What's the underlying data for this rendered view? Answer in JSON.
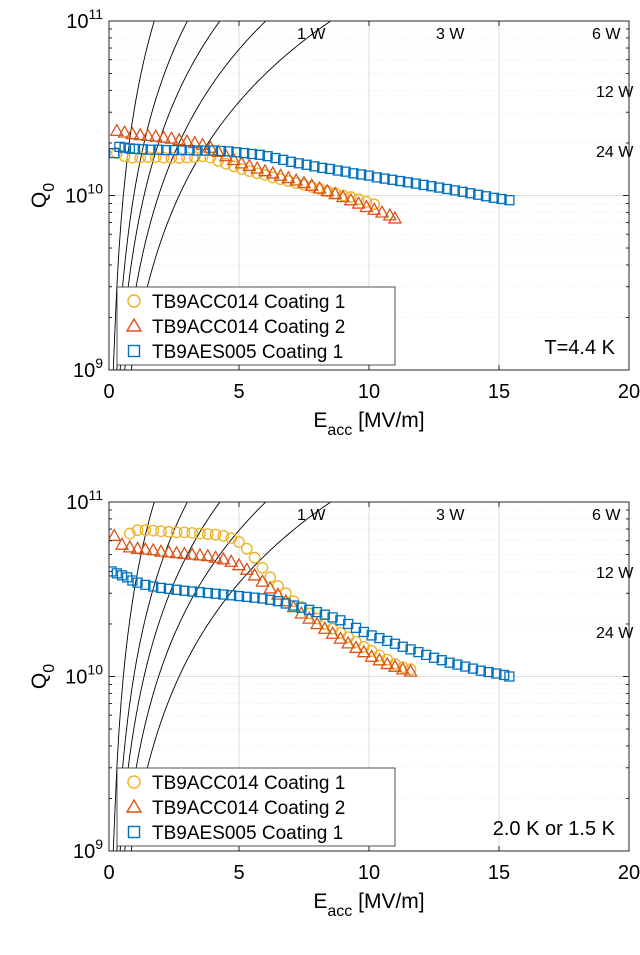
{
  "chart_data": [
    {
      "type": "scatter",
      "xlabel": "E",
      "xlabel_sub": "acc",
      "xlabel_unit": " [MV/m]",
      "ylabel": "Q",
      "ylabel_sub": "0",
      "xlim": [
        0,
        20
      ],
      "ylim": [
        1000000000.0,
        100000000000.0
      ],
      "yscale": "log",
      "x_ticks": [
        0,
        5,
        10,
        15,
        20
      ],
      "x_tick_labels": [
        "0",
        "5",
        "10",
        "15",
        "20"
      ],
      "y_ticks": [
        1000000000.0,
        10000000000.0,
        100000000000.0
      ],
      "y_tick_labels": [
        {
          "base": "10",
          "exp": "9"
        },
        {
          "base": "10",
          "exp": "10"
        },
        {
          "base": "10",
          "exp": "11"
        }
      ],
      "grid": true,
      "legend_position": "bottom-left",
      "annotation": "T=4.4 K",
      "power_lines": [
        {
          "label": "1 W",
          "power": 1
        },
        {
          "label": "3 W",
          "power": 3
        },
        {
          "label": "6 W",
          "power": 6
        },
        {
          "label": "12 W",
          "power": 12
        },
        {
          "label": "24 W",
          "power": 24
        }
      ],
      "series": [
        {
          "name": "TB9ACC014 Coating 1",
          "marker": "circle",
          "color": "#EDB120",
          "x": [
            0.3,
            0.6,
            0.9,
            1.2,
            1.5,
            1.8,
            2.1,
            2.4,
            2.7,
            3.0,
            3.3,
            3.6,
            3.9,
            4.2,
            4.5,
            4.8,
            5.1,
            5.4,
            5.7,
            6.0,
            6.3,
            6.6,
            6.9,
            7.2,
            7.5,
            7.8,
            8.1,
            8.4,
            8.7,
            9.0,
            9.3,
            9.6,
            9.9,
            10.2
          ],
          "y": [
            17500000000.0,
            16800000000.0,
            16500000000.0,
            16500000000.0,
            16600000000.0,
            16600000000.0,
            16500000000.0,
            16400000000.0,
            16400000000.0,
            16500000000.0,
            16600000000.0,
            16800000000.0,
            16500000000.0,
            15800000000.0,
            15200000000.0,
            14700000000.0,
            14200000000.0,
            13800000000.0,
            13400000000.0,
            13100000000.0,
            12700000000.0,
            12400000000.0,
            12100000000.0,
            11800000000.0,
            11500000000.0,
            11200000000.0,
            10900000000.0,
            10600000000.0,
            10300000000.0,
            10000000000.0,
            9800000000.0,
            9500000000.0,
            9200000000.0,
            8900000000.0
          ]
        },
        {
          "name": "TB9ACC014 Coating 2",
          "marker": "triangle",
          "color": "#D95319",
          "x": [
            0.3,
            0.6,
            0.9,
            1.2,
            1.5,
            1.8,
            2.1,
            2.4,
            2.7,
            3.0,
            3.3,
            3.6,
            3.9,
            4.2,
            4.5,
            4.8,
            5.1,
            5.4,
            5.7,
            6.0,
            6.3,
            6.6,
            6.9,
            7.2,
            7.5,
            7.8,
            8.1,
            8.4,
            8.7,
            9.0,
            9.3,
            9.6,
            9.9,
            10.2,
            10.5,
            10.8,
            11.0
          ],
          "y": [
            23500000000.0,
            23000000000.0,
            22500000000.0,
            22200000000.0,
            22000000000.0,
            21800000000.0,
            21500000000.0,
            21200000000.0,
            20800000000.0,
            20400000000.0,
            20000000000.0,
            19500000000.0,
            18800000000.0,
            17800000000.0,
            16800000000.0,
            16000000000.0,
            15300000000.0,
            14800000000.0,
            14300000000.0,
            13800000000.0,
            13400000000.0,
            13000000000.0,
            12600000000.0,
            12200000000.0,
            11800000000.0,
            11400000000.0,
            11000000000.0,
            10600000000.0,
            10200000000.0,
            9800000000.0,
            9400000000.0,
            9000000000.0,
            8600000000.0,
            8300000000.0,
            8000000000.0,
            7700000000.0,
            7400000000.0
          ]
        },
        {
          "name": "TB9AES005 Coating 1",
          "marker": "square",
          "color": "#0072BD",
          "x": [
            0.2,
            0.4,
            0.6,
            0.8,
            1.0,
            1.3,
            1.6,
            1.9,
            2.2,
            2.5,
            2.8,
            3.1,
            3.4,
            3.7,
            4.0,
            4.3,
            4.6,
            4.9,
            5.2,
            5.5,
            5.8,
            6.1,
            6.4,
            6.7,
            7.0,
            7.3,
            7.6,
            7.9,
            8.2,
            8.5,
            8.8,
            9.1,
            9.4,
            9.7,
            10.0,
            10.3,
            10.6,
            10.9,
            11.2,
            11.5,
            11.8,
            12.1,
            12.4,
            12.7,
            13.0,
            13.3,
            13.6,
            13.9,
            14.2,
            14.5,
            14.8,
            15.1,
            15.4
          ],
          "y": [
            17500000000.0,
            19000000000.0,
            18800000000.0,
            18600000000.0,
            18500000000.0,
            18400000000.0,
            18300000000.0,
            18300000000.0,
            18200000000.0,
            18200000000.0,
            18200000000.0,
            18200000000.0,
            18100000000.0,
            18100000000.0,
            18100000000.0,
            18000000000.0,
            17900000000.0,
            17700000000.0,
            17500000000.0,
            17300000000.0,
            17100000000.0,
            16800000000.0,
            16400000000.0,
            16000000000.0,
            15600000000.0,
            15300000000.0,
            15000000000.0,
            14700000000.0,
            14400000000.0,
            14200000000.0,
            13900000000.0,
            13700000000.0,
            13400000000.0,
            13200000000.0,
            13000000000.0,
            12700000000.0,
            12500000000.0,
            12300000000.0,
            12100000000.0,
            11900000000.0,
            11700000000.0,
            11500000000.0,
            11300000000.0,
            11100000000.0,
            10900000000.0,
            10700000000.0,
            10500000000.0,
            10300000000.0,
            10100000000.0,
            9900000000.0,
            9700000000.0,
            9550000000.0,
            9400000000.0
          ]
        }
      ]
    },
    {
      "type": "scatter",
      "xlabel": "E",
      "xlabel_sub": "acc",
      "xlabel_unit": " [MV/m]",
      "ylabel": "Q",
      "ylabel_sub": "0",
      "xlim": [
        0,
        20
      ],
      "ylim": [
        1000000000.0,
        100000000000.0
      ],
      "yscale": "log",
      "x_ticks": [
        0,
        5,
        10,
        15,
        20
      ],
      "x_tick_labels": [
        "0",
        "5",
        "10",
        "15",
        "20"
      ],
      "y_ticks": [
        1000000000.0,
        10000000000.0,
        100000000000.0
      ],
      "y_tick_labels": [
        {
          "base": "10",
          "exp": "9"
        },
        {
          "base": "10",
          "exp": "10"
        },
        {
          "base": "10",
          "exp": "11"
        }
      ],
      "grid": true,
      "legend_position": "bottom-left",
      "annotation": "2.0 K or 1.5 K",
      "power_lines": [
        {
          "label": "1 W",
          "power": 1
        },
        {
          "label": "3 W",
          "power": 3
        },
        {
          "label": "6 W",
          "power": 6
        },
        {
          "label": "12 W",
          "power": 12
        },
        {
          "label": "24 W",
          "power": 24
        }
      ],
      "series": [
        {
          "name": "TB9ACC014 Coating 1",
          "marker": "circle",
          "color": "#EDB120",
          "x": [
            0.8,
            1.1,
            1.4,
            1.7,
            2.0,
            2.3,
            2.6,
            2.9,
            3.2,
            3.5,
            3.8,
            4.1,
            4.4,
            4.7,
            5.0,
            5.3,
            5.6,
            5.9,
            6.2,
            6.5,
            6.8,
            7.1,
            7.4,
            7.7,
            8.0,
            8.3,
            8.6,
            8.9,
            9.2,
            9.5,
            9.8,
            10.1,
            10.4,
            10.7,
            11.0,
            11.3,
            11.6
          ],
          "y": [
            66000000000.0,
            69000000000.0,
            69000000000.0,
            68500000000.0,
            68000000000.0,
            67500000000.0,
            67000000000.0,
            67000000000.0,
            66500000000.0,
            66000000000.0,
            65500000000.0,
            65000000000.0,
            64000000000.0,
            62000000000.0,
            59000000000.0,
            54000000000.0,
            48000000000.0,
            42000000000.0,
            37000000000.0,
            33000000000.0,
            30000000000.0,
            27000000000.0,
            25000000000.0,
            23000000000.0,
            21500000000.0,
            20000000000.0,
            18800000000.0,
            17800000000.0,
            16800000000.0,
            15800000000.0,
            14800000000.0,
            14000000000.0,
            13200000000.0,
            12500000000.0,
            11800000000.0,
            11300000000.0,
            11000000000.0
          ]
        },
        {
          "name": "TB9ACC014 Coating 2",
          "marker": "triangle",
          "color": "#D95319",
          "x": [
            0.2,
            0.5,
            0.8,
            1.1,
            1.4,
            1.7,
            2.0,
            2.3,
            2.6,
            2.9,
            3.2,
            3.5,
            3.8,
            4.1,
            4.4,
            4.7,
            5.0,
            5.3,
            5.6,
            5.9,
            6.2,
            6.5,
            6.8,
            7.1,
            7.4,
            7.7,
            8.0,
            8.3,
            8.6,
            8.9,
            9.2,
            9.5,
            9.8,
            10.1,
            10.4,
            10.7,
            11.0,
            11.3,
            11.6
          ],
          "y": [
            64000000000.0,
            57000000000.0,
            55000000000.0,
            54000000000.0,
            53500000000.0,
            53000000000.0,
            52000000000.0,
            51500000000.0,
            51000000000.0,
            50500000000.0,
            50000000000.0,
            49500000000.0,
            49000000000.0,
            48000000000.0,
            47000000000.0,
            45500000000.0,
            43500000000.0,
            41000000000.0,
            38000000000.0,
            35000000000.0,
            32000000000.0,
            29500000000.0,
            27000000000.0,
            25000000000.0,
            23000000000.0,
            21500000000.0,
            20000000000.0,
            18800000000.0,
            17600000000.0,
            16500000000.0,
            15500000000.0,
            14600000000.0,
            13800000000.0,
            13000000000.0,
            12400000000.0,
            11800000000.0,
            11400000000.0,
            11000000000.0,
            10700000000.0
          ]
        },
        {
          "name": "TB9AES005 Coating 1",
          "marker": "square",
          "color": "#0072BD",
          "x": [
            0.1,
            0.3,
            0.5,
            0.7,
            0.9,
            1.1,
            1.4,
            1.7,
            2.0,
            2.3,
            2.6,
            2.9,
            3.2,
            3.5,
            3.8,
            4.1,
            4.4,
            4.7,
            5.0,
            5.3,
            5.6,
            5.9,
            6.2,
            6.5,
            6.8,
            7.1,
            7.4,
            7.7,
            8.0,
            8.3,
            8.6,
            8.9,
            9.2,
            9.5,
            9.8,
            10.1,
            10.4,
            10.7,
            11.0,
            11.3,
            11.6,
            11.9,
            12.2,
            12.5,
            12.8,
            13.1,
            13.4,
            13.7,
            14.0,
            14.3,
            14.6,
            14.9,
            15.2,
            15.4
          ],
          "y": [
            40000000000.0,
            39000000000.0,
            38000000000.0,
            37000000000.0,
            35500000000.0,
            34500000000.0,
            33500000000.0,
            32800000000.0,
            32200000000.0,
            31800000000.0,
            31400000000.0,
            31000000000.0,
            30700000000.0,
            30400000000.0,
            30100000000.0,
            29800000000.0,
            29500000000.0,
            29200000000.0,
            28900000000.0,
            28600000000.0,
            28300000000.0,
            28000000000.0,
            27500000000.0,
            27000000000.0,
            26200000000.0,
            25500000000.0,
            24800000000.0,
            24100000000.0,
            23400000000.0,
            22600000000.0,
            21800000000.0,
            21000000000.0,
            20000000000.0,
            19000000000.0,
            18000000000.0,
            17200000000.0,
            16600000000.0,
            16000000000.0,
            15400000000.0,
            14800000000.0,
            14300000000.0,
            13800000000.0,
            13300000000.0,
            12800000000.0,
            12400000000.0,
            12000000000.0,
            11700000000.0,
            11400000000.0,
            11100000000.0,
            10800000000.0,
            10600000000.0,
            10400000000.0,
            10200000000.0,
            10000000000.0
          ]
        }
      ]
    }
  ]
}
